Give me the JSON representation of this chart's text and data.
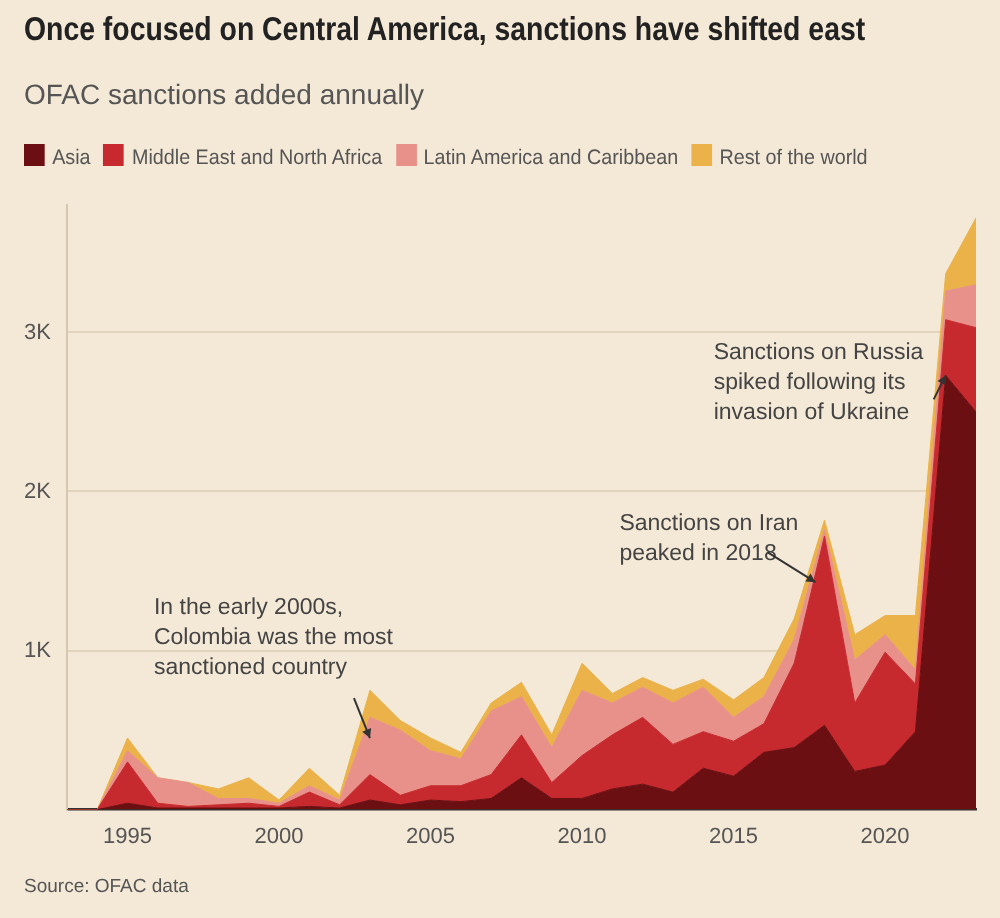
{
  "chart_data": {
    "type": "area",
    "title": "Once focused on Central America, sanctions have shifted east",
    "subtitle": "OFAC sanctions added annually",
    "x": [
      1993,
      1994,
      1995,
      1996,
      1997,
      1998,
      1999,
      2000,
      2001,
      2002,
      2003,
      2004,
      2005,
      2006,
      2007,
      2008,
      2009,
      2010,
      2011,
      2012,
      2013,
      2014,
      2015,
      2016,
      2017,
      2018,
      2019,
      2020,
      2021,
      2022,
      2023
    ],
    "stacked": true,
    "series": [
      {
        "name": "Asia",
        "color": "#6b0f12",
        "values": [
          0,
          0,
          40,
          10,
          10,
          10,
          10,
          10,
          20,
          10,
          60,
          30,
          60,
          50,
          70,
          200,
          70,
          70,
          130,
          160,
          110,
          260,
          210,
          360,
          390,
          530,
          240,
          280,
          490,
          2730,
          2500
        ]
      },
      {
        "name": "Middle East and North Africa",
        "color": "#c62a2f",
        "values": [
          0,
          0,
          260,
          30,
          10,
          20,
          30,
          10,
          90,
          20,
          160,
          60,
          90,
          100,
          150,
          270,
          100,
          270,
          340,
          420,
          300,
          230,
          220,
          180,
          530,
          1190,
          430,
          710,
          300,
          350,
          530
        ]
      },
      {
        "name": "Latin America and Caribbean",
        "color": "#e8918a",
        "values": [
          0,
          0,
          70,
          160,
          150,
          40,
          30,
          20,
          40,
          30,
          360,
          410,
          220,
          170,
          400,
          240,
          220,
          410,
          200,
          190,
          260,
          280,
          150,
          170,
          150,
          40,
          270,
          110,
          90,
          180,
          270
        ]
      },
      {
        "name": "Rest of the world",
        "color": "#ebb24a",
        "values": [
          0,
          0,
          80,
          0,
          0,
          60,
          130,
          20,
          110,
          30,
          170,
          60,
          80,
          40,
          50,
          90,
          80,
          170,
          60,
          60,
          80,
          50,
          110,
          120,
          130,
          60,
          160,
          120,
          340,
          110,
          420
        ]
      }
    ],
    "xlim": [
      1993,
      2023
    ],
    "xticks": [
      1995,
      2000,
      2005,
      2010,
      2015,
      2020
    ],
    "ylim": [
      0,
      3800
    ],
    "yticks": [
      {
        "value": 1000,
        "label": "1K"
      },
      {
        "value": 2000,
        "label": "2K"
      },
      {
        "value": 3000,
        "label": "3K"
      }
    ],
    "grid": "y",
    "legend": "top",
    "annotations": [
      {
        "text": "In the early 2000s,\nColombia was the most\nsanctioned country",
        "x": 2003,
        "y": 450
      },
      {
        "text": "Sanctions on Iran\npeaked in 2018",
        "x": 2017.7,
        "y": 1430
      },
      {
        "text": "Sanctions on Russia\nspiked following its\ninvasion of Ukraine",
        "x": 2022,
        "y": 2730
      },
      "Source: OFAC data"
    ]
  }
}
